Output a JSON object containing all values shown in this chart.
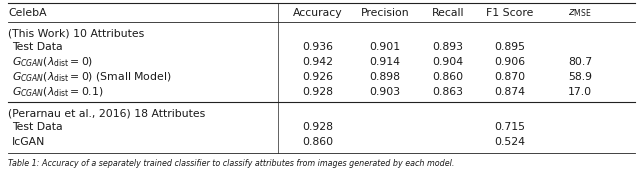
{
  "col_header": "CelebA",
  "headers": [
    "Accuracy",
    "Precision",
    "Recall",
    "F1 Score"
  ],
  "zmse_header": "z_MSE",
  "section1_header": "(This Work) 10 Attributes",
  "section2_header": "(Perarnau et al., 2016) 18 Attributes",
  "rows_s1": [
    {
      "label": "Test Data",
      "accuracy": "0.936",
      "precision": "0.901",
      "recall": "0.893",
      "f1": "0.895",
      "zmse": ""
    },
    {
      "label": "G_CGAN_lam0",
      "accuracy": "0.942",
      "precision": "0.914",
      "recall": "0.904",
      "f1": "0.906",
      "zmse": "80.7"
    },
    {
      "label": "G_CGAN_lam0_small",
      "accuracy": "0.926",
      "precision": "0.898",
      "recall": "0.860",
      "f1": "0.870",
      "zmse": "58.9"
    },
    {
      "label": "G_CGAN_lam01",
      "accuracy": "0.928",
      "precision": "0.903",
      "recall": "0.863",
      "f1": "0.874",
      "zmse": "17.0"
    }
  ],
  "rows_s2": [
    {
      "label": "Test Data",
      "accuracy": "0.928",
      "precision": "",
      "recall": "",
      "f1": "0.715",
      "zmse": ""
    },
    {
      "label": "IcGAN",
      "accuracy": "0.860",
      "precision": "",
      "recall": "",
      "f1": "0.524",
      "zmse": ""
    }
  ],
  "caption": "Table 1: Accuracy of a separately trained classifier to classify attributes from images generated by each model.",
  "bg_color": "#ffffff",
  "text_color": "#1a1a1a",
  "line_color": "#222222",
  "font_size": 7.8,
  "caption_font_size": 5.8
}
